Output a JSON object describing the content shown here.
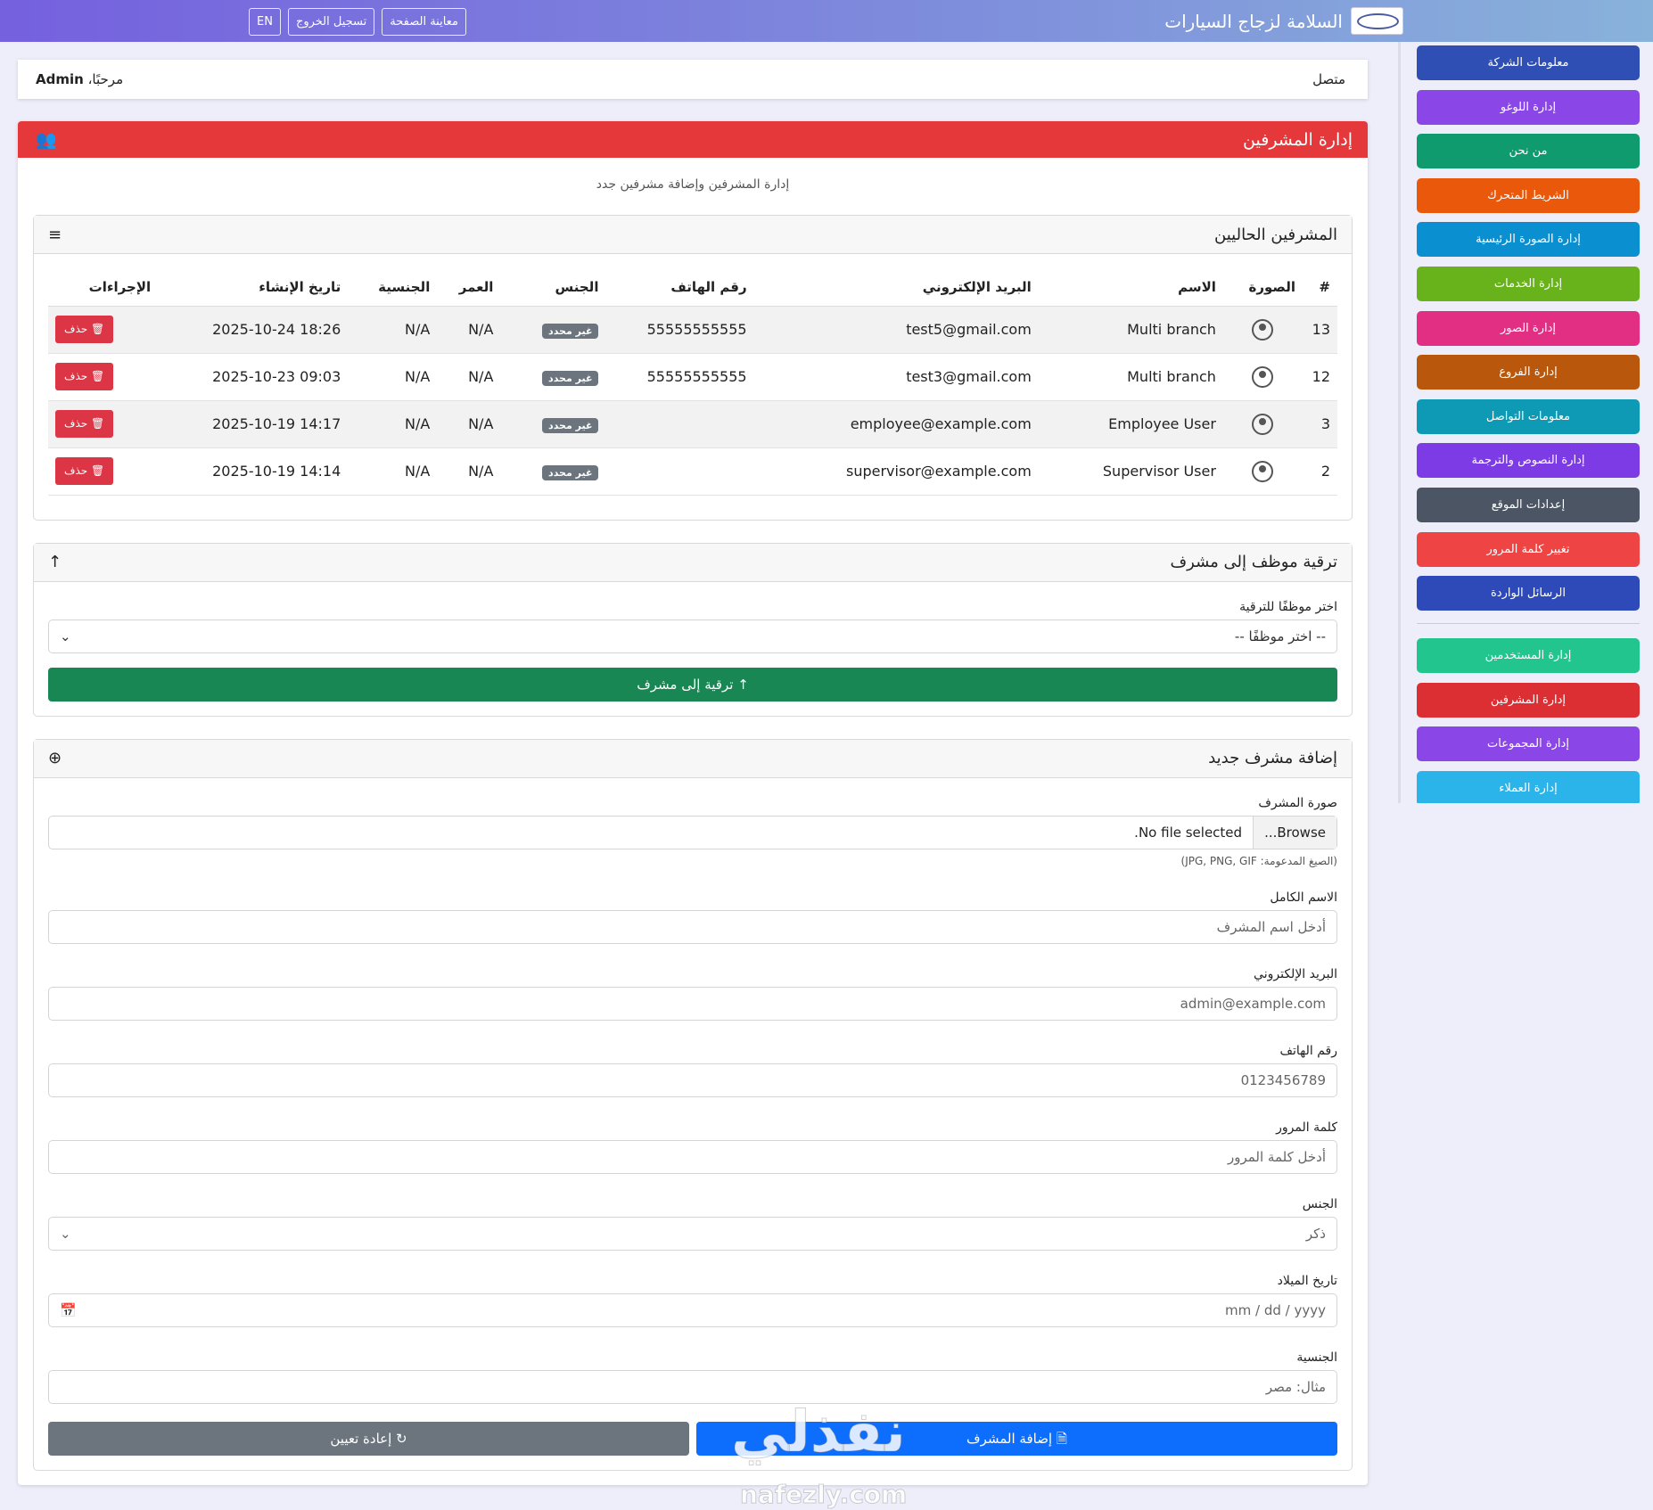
{
  "header": {
    "site_title": "السلامة لزجاج السيارات",
    "buttons": [
      "معاينة الصفحة",
      "تسجيل الخروج",
      "EN"
    ]
  },
  "sidebar": {
    "group1": [
      "معلومات الشركة",
      "إدارة اللوغو",
      "من نحن",
      "الشريط المتحرك",
      "إدارة الصورة الرئيسية",
      "إدارة الخدمات",
      "إدارة الصور",
      "إدارة الفروع",
      "معلومات التواصل",
      "إدارة النصوص والترجمة",
      "إعدادات الموقع",
      "تغيير كلمة المرور",
      "الرسائل الواردة"
    ],
    "group2": [
      "إدارة المستخدمين",
      "إدارة المشرفين",
      "إدارة المجموعات",
      "إدارة العملاء"
    ]
  },
  "status": {
    "connected": "متصل",
    "welcome": "مرحبًا،",
    "user": "Admin"
  },
  "panel": {
    "title": "إدارة المشرفين",
    "description": "إدارة المشرفين وإضافة مشرفين جدد"
  },
  "current": {
    "title": "المشرفين الحاليين",
    "table": {
      "headers": [
        "#",
        "الصورة",
        "الاسم",
        "البريد الإلكتروني",
        "رقم الهاتف",
        "الجنس",
        "العمر",
        "الجنسية",
        "تاريخ الإنشاء",
        "الإجراءات"
      ],
      "rows": [
        [
          "13",
          "Multi branch",
          "test5@gmail.com",
          "55555555555",
          "غير محدد",
          "N/A",
          "N/A",
          "18:26 2025-10-24",
          "حذف"
        ],
        [
          "12",
          "Multi branch",
          "test3@gmail.com",
          "55555555555",
          "غير محدد",
          "N/A",
          "N/A",
          "09:03 2025-10-23",
          "حذف"
        ],
        [
          "3",
          "Employee User",
          "employee@example.com",
          null,
          "غير محدد",
          "N/A",
          "N/A",
          "14:17 2025-10-19",
          "حذف"
        ],
        [
          "2",
          "Supervisor User",
          "supervisor@example.com",
          null,
          "غير محدد",
          "N/A",
          "N/A",
          "14:14 2025-10-19",
          "حذف"
        ]
      ]
    }
  },
  "promote": {
    "title": "ترقية موظف إلى مشرف",
    "label": "اختر موظفًا للترقية",
    "placeholder": "-- اختر موظفًا --",
    "button": "ترقية إلى مشرف"
  },
  "add": {
    "title": "إضافة مشرف جديد",
    "photo_label": "صورة المشرف",
    "browse": "Browse...",
    "no_file": "No file selected.",
    "hint": "(الصيغ المدعومة: JPG, PNG, GIF)",
    "fields": [
      {
        "label": "الاسم الكامل",
        "placeholder": "أدخل اسم المشرف"
      },
      {
        "label": "البريد الإلكتروني",
        "placeholder": "admin@example.com"
      },
      {
        "label": "رقم الهاتف",
        "placeholder": "0123456789"
      },
      {
        "label": "كلمة المرور",
        "placeholder": "أدخل كلمة المرور"
      },
      {
        "label": "الجنس",
        "placeholder": "ذكر"
      },
      {
        "label": "تاريخ الميلاد",
        "placeholder": "mm / dd / yyyy"
      },
      {
        "label": "الجنسية",
        "placeholder": "مثال: مصر"
      }
    ],
    "submit": "إضافة المشرف",
    "reset": "إعادة تعيين"
  },
  "watermark": {
    "arabic": "نفذلي",
    "latin": "nafezly.com"
  }
}
